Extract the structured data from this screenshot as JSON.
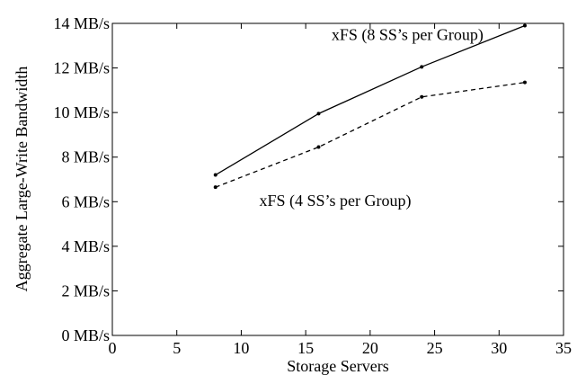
{
  "chart_data": {
    "type": "line",
    "title": "",
    "xlabel": "Storage Servers",
    "ylabel": "Aggregate Large-Write Bandwidth",
    "xlim": [
      0,
      35
    ],
    "ylim": [
      0,
      14
    ],
    "x_ticks": [
      0,
      5,
      10,
      15,
      20,
      25,
      30,
      35
    ],
    "x_tick_labels": [
      "0",
      "5",
      "10",
      "15",
      "20",
      "25",
      "30",
      "35"
    ],
    "y_ticks": [
      0,
      2,
      4,
      6,
      8,
      10,
      12,
      14
    ],
    "y_tick_labels": [
      "0 MB/s",
      "2 MB/s",
      "4 MB/s",
      "6 MB/s",
      "8 MB/s",
      "10 MB/s",
      "12 MB/s",
      "14 MB/s"
    ],
    "grid": false,
    "legend": "none",
    "series": [
      {
        "name": "xFS (8 SS’s per Group)",
        "x": [
          8,
          16,
          24,
          32
        ],
        "y": [
          7.2,
          9.95,
          12.05,
          13.9
        ],
        "line_style": "solid",
        "color": "#000000"
      },
      {
        "name": "xFS (4 SS’s per Group)",
        "x": [
          8,
          16,
          24,
          32
        ],
        "y": [
          6.65,
          8.45,
          10.7,
          11.35
        ],
        "line_style": "dashed",
        "color": "#000000"
      }
    ],
    "annotations": [
      {
        "text": "xFS (8 SS’s per Group)",
        "x": 17,
        "y": 13.25,
        "series": 0
      },
      {
        "text": "xFS (4 SS’s per Group)",
        "x": 11.4,
        "y": 5.8,
        "series": 1
      }
    ]
  }
}
